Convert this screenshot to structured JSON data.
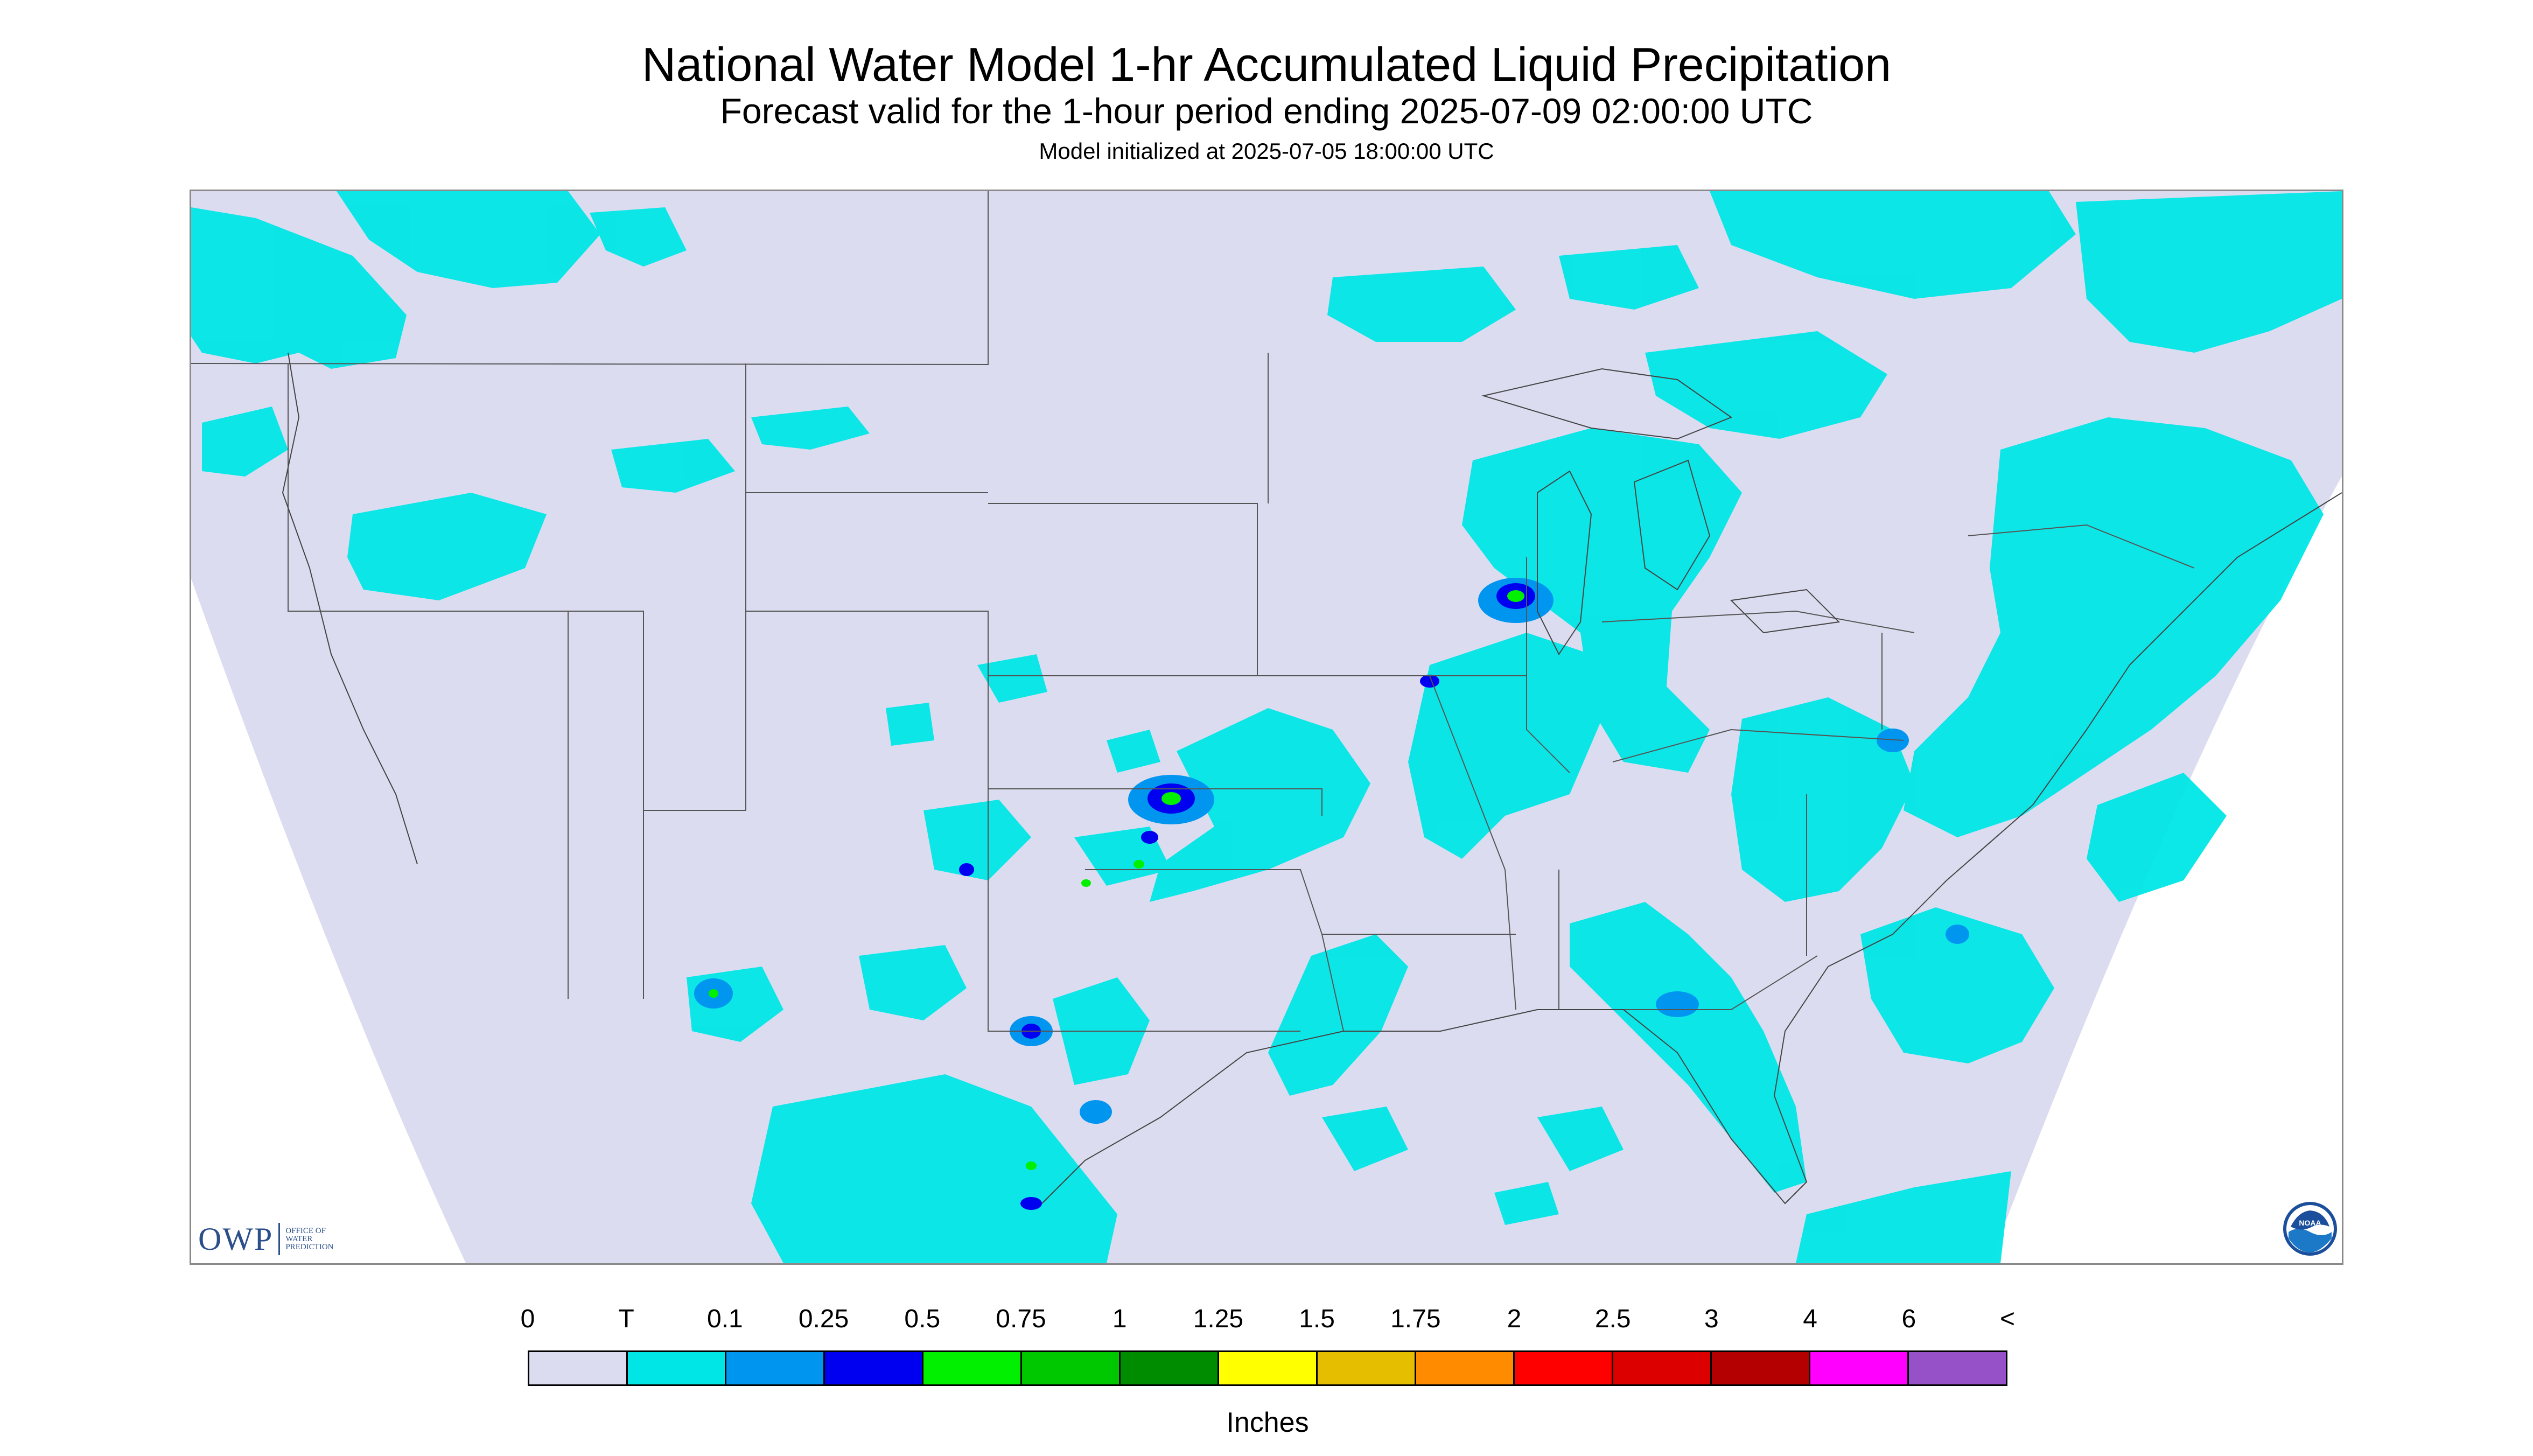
{
  "header": {
    "title": "National Water Model 1-hr Accumulated Liquid Precipitation",
    "subtitle": "Forecast valid for the 1-hour period ending 2025-07-09 02:00:00 UTC",
    "init_text": "Model initialized at 2025-07-05 18:00:00 UTC"
  },
  "legend": {
    "labels": [
      "0",
      "T",
      "0.1",
      "0.25",
      "0.5",
      "0.75",
      "1",
      "1.25",
      "1.5",
      "1.75",
      "2",
      "2.5",
      "3",
      "4",
      "6",
      "<"
    ],
    "colors": [
      "#dcdcf0",
      "#00e6e6",
      "#0096f0",
      "#0000f0",
      "#00f000",
      "#00c800",
      "#008c00",
      "#ffff00",
      "#e6be00",
      "#ff8c00",
      "#ff0000",
      "#dc0000",
      "#b40000",
      "#ff00ff",
      "#9650c8"
    ],
    "units": "Inches"
  },
  "logos": {
    "owp_main": "OWP",
    "owp_sub": [
      "OFFICE OF",
      "WATER",
      "PREDICTION"
    ],
    "noaa_text": "NOAA"
  },
  "map_colors": {
    "background": "#dcdcf0",
    "trace": "#00e6e6",
    "light": "#0096f0",
    "moderate": "#0000f0",
    "heavy": "#00f000",
    "boundary": "#555555"
  }
}
